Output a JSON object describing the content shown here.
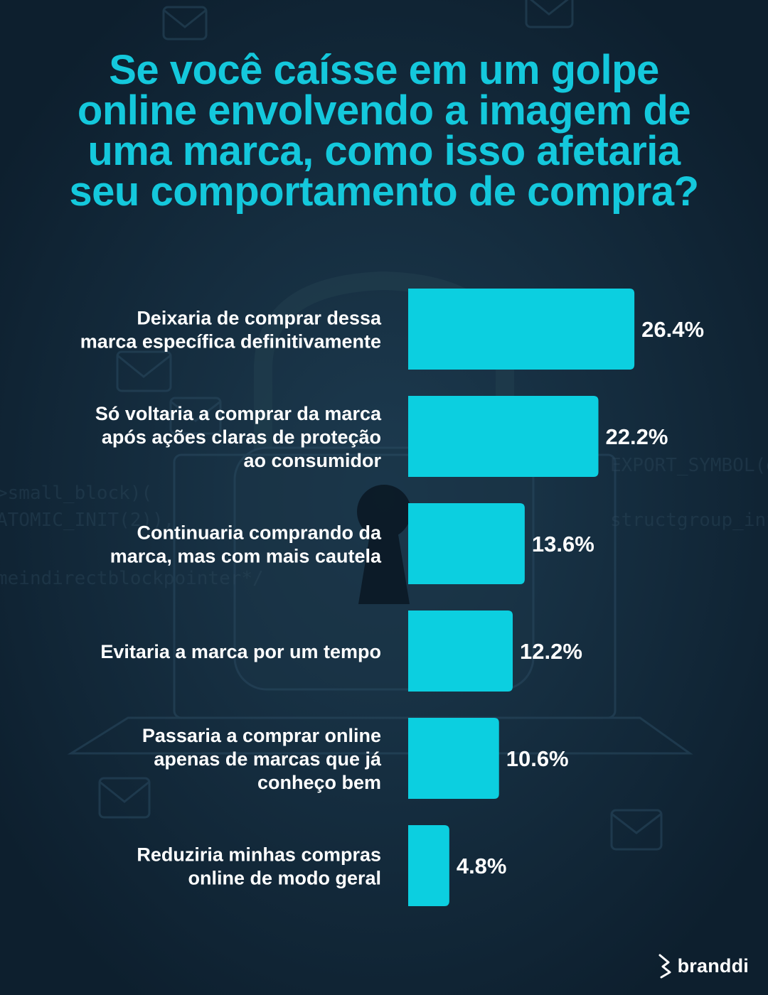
{
  "title": {
    "lines": [
      "Se você caísse em um golpe",
      "online envolvendo a imagem de",
      "uma marca, como isso afetaria",
      "seu comportamento de compra?"
    ]
  },
  "colors": {
    "background": "#0d1f2e",
    "title": "#14c8dc",
    "bar": "#0ccfe0",
    "text": "#ffffff"
  },
  "chart_data": {
    "type": "bar",
    "orientation": "horizontal",
    "categories": [
      [
        "Deixaria de comprar dessa",
        "marca específica definitivamente"
      ],
      [
        "Só voltaria a comprar da marca",
        "após ações claras de proteção",
        "ao consumidor"
      ],
      [
        "Continuaria comprando da",
        "marca, mas com mais cautela"
      ],
      [
        "Evitaria a marca por um tempo"
      ],
      [
        "Passaria a comprar online",
        "apenas de marcas que já",
        "conheço bem"
      ],
      [
        "Reduziria minhas compras",
        "online de modo geral"
      ]
    ],
    "values": [
      26.4,
      22.2,
      13.6,
      12.2,
      10.6,
      4.8
    ],
    "value_labels": [
      "26.4%",
      "22.2%",
      "13.6%",
      "12.2%",
      "10.6%",
      "4.8%"
    ],
    "unit": "%",
    "grid": false,
    "axes_visible": false,
    "legend": "none"
  },
  "brand": {
    "name": "branddi",
    "icon": "branddi-logo-icon"
  }
}
